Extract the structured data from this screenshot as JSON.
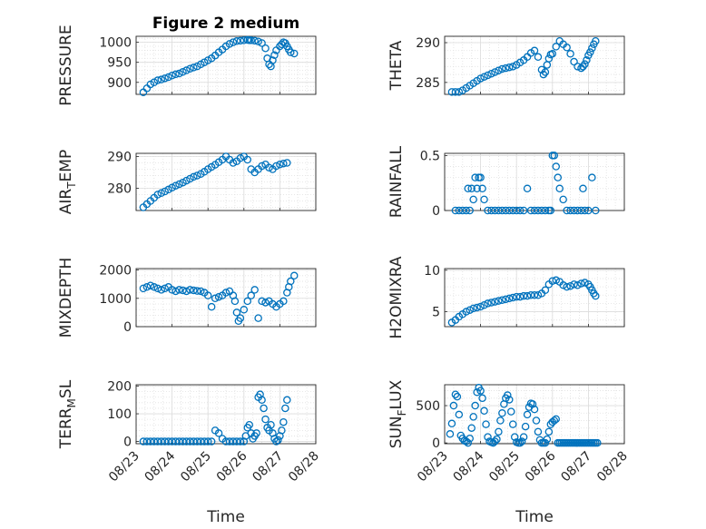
{
  "figure_title": "Figure 2 medium",
  "chart_data": [
    {
      "type": "scatter",
      "ylabel": "PRESSURE",
      "title": "Figure 2 medium",
      "xlim": [
        0,
        5
      ],
      "ylim": [
        870,
        1015
      ],
      "yticks": [
        900,
        950,
        1000
      ],
      "xticks": [
        0,
        1,
        2,
        3,
        4,
        5
      ],
      "xticklabels": [
        "08/23",
        "08/24",
        "08/25",
        "08/26",
        "08/27",
        "08/28"
      ],
      "show_xticklabels": false,
      "xlabel": "",
      "x": [
        0.2,
        0.3,
        0.4,
        0.5,
        0.6,
        0.7,
        0.8,
        0.9,
        1.0,
        1.1,
        1.2,
        1.3,
        1.4,
        1.5,
        1.6,
        1.7,
        1.8,
        1.9,
        2.0,
        2.1,
        2.2,
        2.3,
        2.4,
        2.5,
        2.6,
        2.7,
        2.8,
        2.9,
        3.0,
        3.1,
        3.15,
        3.2,
        3.3,
        3.4,
        3.5,
        3.6,
        3.65,
        3.7,
        3.75,
        3.8,
        3.85,
        3.9,
        4.0,
        4.05,
        4.1,
        4.15,
        4.2,
        4.25,
        4.3,
        4.4
      ],
      "y": [
        875,
        885,
        895,
        900,
        905,
        907,
        910,
        913,
        917,
        920,
        922,
        926,
        930,
        934,
        937,
        940,
        945,
        950,
        955,
        960,
        967,
        975,
        982,
        990,
        996,
        1000,
        1003,
        1004,
        1005,
        1006,
        1005,
        1005,
        1004,
        1002,
        998,
        985,
        960,
        945,
        940,
        955,
        968,
        980,
        990,
        995,
        1000,
        998,
        990,
        982,
        975,
        972
      ]
    },
    {
      "type": "scatter",
      "ylabel": "THETA",
      "xlim": [
        0,
        5
      ],
      "ylim": [
        283.5,
        290.8
      ],
      "yticks": [
        285,
        290
      ],
      "xticks": [
        0,
        1,
        2,
        3,
        4,
        5
      ],
      "xticklabels": [
        "08/23",
        "08/24",
        "08/25",
        "08/26",
        "08/27",
        "08/28"
      ],
      "show_xticklabels": false,
      "xlabel": "",
      "x": [
        0.2,
        0.3,
        0.4,
        0.5,
        0.6,
        0.7,
        0.8,
        0.9,
        1.0,
        1.1,
        1.2,
        1.3,
        1.4,
        1.5,
        1.6,
        1.7,
        1.8,
        1.9,
        2.0,
        2.1,
        2.2,
        2.3,
        2.4,
        2.5,
        2.6,
        2.7,
        2.75,
        2.8,
        2.85,
        2.9,
        2.95,
        3.0,
        3.1,
        3.2,
        3.3,
        3.4,
        3.5,
        3.6,
        3.7,
        3.8,
        3.85,
        3.9,
        3.95,
        4.0,
        4.05,
        4.1,
        4.15,
        4.2
      ],
      "y": [
        283.8,
        283.8,
        283.8,
        284.0,
        284.3,
        284.6,
        284.9,
        285.2,
        285.5,
        285.7,
        285.9,
        286.1,
        286.3,
        286.5,
        286.7,
        286.8,
        286.9,
        287.0,
        287.2,
        287.5,
        287.8,
        288.2,
        288.7,
        289.0,
        288.2,
        286.6,
        286.0,
        286.3,
        287.2,
        288.0,
        288.5,
        288.6,
        289.5,
        290.2,
        289.8,
        289.4,
        288.6,
        287.6,
        287.0,
        286.8,
        287.0,
        287.3,
        287.8,
        288.4,
        288.8,
        289.3,
        289.8,
        290.2
      ]
    },
    {
      "type": "scatter",
      "ylabel": "AIR_TEMP",
      "ylabel_main": "AIR",
      "ylabel_sub": "T",
      "ylabel_rest": "EMP",
      "xlim": [
        0,
        5
      ],
      "ylim": [
        273,
        291
      ],
      "yticks": [
        280,
        290
      ],
      "xticks": [
        0,
        1,
        2,
        3,
        4,
        5
      ],
      "xticklabels": [
        "08/23",
        "08/24",
        "08/25",
        "08/26",
        "08/27",
        "08/28"
      ],
      "show_xticklabels": false,
      "xlabel": "",
      "x": [
        0.2,
        0.3,
        0.4,
        0.5,
        0.6,
        0.7,
        0.8,
        0.9,
        1.0,
        1.1,
        1.2,
        1.3,
        1.4,
        1.5,
        1.6,
        1.7,
        1.8,
        1.9,
        2.0,
        2.1,
        2.2,
        2.3,
        2.4,
        2.5,
        2.6,
        2.7,
        2.8,
        2.9,
        3.0,
        3.1,
        3.2,
        3.3,
        3.4,
        3.5,
        3.6,
        3.7,
        3.8,
        3.9,
        4.0,
        4.1,
        4.2
      ],
      "y": [
        274,
        275,
        276,
        277,
        278,
        278.5,
        279,
        279.6,
        280.2,
        280.8,
        281.3,
        281.8,
        282.4,
        283,
        283.6,
        284,
        284.5,
        285.2,
        286,
        286.7,
        287.4,
        288.2,
        289,
        290,
        289,
        288,
        288.5,
        289.5,
        290,
        289,
        286,
        285,
        286,
        287,
        287.5,
        286.5,
        286,
        287,
        287.5,
        287.8,
        288
      ]
    },
    {
      "type": "scatter",
      "ylabel": "RAINFALL",
      "xlim": [
        0,
        5
      ],
      "ylim": [
        0,
        0.52
      ],
      "yticks": [
        0,
        0.5
      ],
      "xticks": [
        0,
        1,
        2,
        3,
        4,
        5
      ],
      "xticklabels": [
        "08/23",
        "08/24",
        "08/25",
        "08/26",
        "08/27",
        "08/28"
      ],
      "show_xticklabels": false,
      "xlabel": "",
      "x": [
        0.3,
        0.4,
        0.5,
        0.6,
        0.65,
        0.7,
        0.75,
        0.8,
        0.85,
        0.9,
        0.95,
        1.0,
        1.05,
        1.1,
        1.2,
        1.3,
        1.4,
        1.5,
        1.6,
        1.7,
        1.8,
        1.9,
        2.0,
        2.1,
        2.2,
        2.3,
        2.4,
        2.5,
        2.6,
        2.7,
        2.8,
        2.9,
        2.95,
        3.0,
        3.05,
        3.1,
        3.15,
        3.2,
        3.3,
        3.4,
        3.5,
        3.6,
        3.7,
        3.8,
        3.85,
        3.9,
        4.0,
        4.1,
        4.2
      ],
      "y": [
        0,
        0,
        0,
        0,
        0.2,
        0,
        0.2,
        0.1,
        0.3,
        0.2,
        0.3,
        0.3,
        0.2,
        0.1,
        0,
        0,
        0,
        0,
        0,
        0,
        0,
        0,
        0,
        0,
        0,
        0.2,
        0,
        0,
        0,
        0,
        0,
        0,
        0,
        0.5,
        0.5,
        0.4,
        0.3,
        0.2,
        0.1,
        0,
        0,
        0,
        0,
        0,
        0.2,
        0,
        0,
        0.3,
        0
      ]
    },
    {
      "type": "scatter",
      "ylabel": "MIXDEPTH",
      "xlim": [
        0,
        5
      ],
      "ylim": [
        0,
        2050
      ],
      "yticks": [
        0,
        1000,
        2000
      ],
      "xticks": [
        0,
        1,
        2,
        3,
        4,
        5
      ],
      "xticklabels": [
        "08/23",
        "08/24",
        "08/25",
        "08/26",
        "08/27",
        "08/28"
      ],
      "show_xticklabels": false,
      "xlabel": "",
      "x": [
        0.2,
        0.3,
        0.4,
        0.5,
        0.6,
        0.7,
        0.8,
        0.9,
        1.0,
        1.1,
        1.2,
        1.3,
        1.4,
        1.5,
        1.6,
        1.7,
        1.8,
        1.9,
        2.0,
        2.1,
        2.2,
        2.3,
        2.4,
        2.5,
        2.6,
        2.7,
        2.75,
        2.8,
        2.85,
        2.9,
        3.0,
        3.1,
        3.2,
        3.3,
        3.4,
        3.5,
        3.6,
        3.7,
        3.8,
        3.9,
        4.0,
        4.1,
        4.2,
        4.25,
        4.3,
        4.4
      ],
      "y": [
        1350,
        1400,
        1450,
        1400,
        1350,
        1300,
        1350,
        1400,
        1300,
        1250,
        1300,
        1280,
        1250,
        1300,
        1280,
        1260,
        1250,
        1200,
        1100,
        700,
        1000,
        1050,
        1100,
        1200,
        1250,
        1100,
        900,
        500,
        200,
        300,
        600,
        900,
        1100,
        1300,
        300,
        900,
        850,
        900,
        800,
        700,
        800,
        900,
        1200,
        1400,
        1600,
        1800
      ]
    },
    {
      "type": "scatter",
      "ylabel": "H2OMIXRA",
      "xlim": [
        0,
        5
      ],
      "ylim": [
        3.2,
        10.2
      ],
      "yticks": [
        5,
        10
      ],
      "xticks": [
        0,
        1,
        2,
        3,
        4,
        5
      ],
      "xticklabels": [
        "08/23",
        "08/24",
        "08/25",
        "08/26",
        "08/27",
        "08/28"
      ],
      "show_xticklabels": false,
      "xlabel": "",
      "x": [
        0.2,
        0.3,
        0.4,
        0.5,
        0.6,
        0.7,
        0.8,
        0.9,
        1.0,
        1.1,
        1.2,
        1.3,
        1.4,
        1.5,
        1.6,
        1.7,
        1.8,
        1.9,
        2.0,
        2.1,
        2.2,
        2.3,
        2.4,
        2.5,
        2.6,
        2.7,
        2.8,
        2.9,
        3.0,
        3.1,
        3.2,
        3.3,
        3.4,
        3.5,
        3.6,
        3.7,
        3.8,
        3.9,
        4.0,
        4.05,
        4.1,
        4.15,
        4.2
      ],
      "y": [
        3.7,
        4.0,
        4.4,
        4.7,
        5.0,
        5.2,
        5.4,
        5.5,
        5.6,
        5.8,
        6.0,
        6.1,
        6.2,
        6.3,
        6.4,
        6.5,
        6.6,
        6.7,
        6.8,
        6.8,
        6.9,
        6.9,
        7.0,
        7.0,
        7.0,
        7.2,
        7.6,
        8.3,
        8.7,
        8.8,
        8.6,
        8.2,
        8.0,
        8.1,
        8.3,
        8.2,
        8.4,
        8.5,
        8.3,
        8.0,
        7.6,
        7.2,
        6.9
      ]
    },
    {
      "type": "scatter",
      "ylabel": "TERR_MSL",
      "ylabel_main": "TERR",
      "ylabel_sub": "M",
      "ylabel_rest": "SL",
      "xlim": [
        0,
        5
      ],
      "ylim": [
        -8,
        205
      ],
      "yticks": [
        0,
        100,
        200
      ],
      "xticks": [
        0,
        1,
        2,
        3,
        4,
        5
      ],
      "xticklabels": [
        "08/23",
        "08/24",
        "08/25",
        "08/26",
        "08/27",
        "08/28"
      ],
      "show_xticklabels": true,
      "xlabel": "Time",
      "x": [
        0.2,
        0.3,
        0.4,
        0.5,
        0.6,
        0.7,
        0.8,
        0.9,
        1.0,
        1.1,
        1.2,
        1.3,
        1.4,
        1.5,
        1.6,
        1.7,
        1.8,
        1.9,
        2.0,
        2.1,
        2.2,
        2.3,
        2.4,
        2.5,
        2.6,
        2.7,
        2.8,
        2.9,
        3.0,
        3.05,
        3.1,
        3.15,
        3.2,
        3.25,
        3.3,
        3.35,
        3.4,
        3.45,
        3.5,
        3.55,
        3.6,
        3.65,
        3.7,
        3.75,
        3.8,
        3.85,
        3.9,
        3.95,
        4.0,
        4.05,
        4.1,
        4.15,
        4.2
      ],
      "y": [
        0,
        0,
        0,
        0,
        0,
        0,
        0,
        0,
        0,
        0,
        0,
        0,
        0,
        0,
        0,
        0,
        0,
        0,
        0,
        0,
        40,
        30,
        10,
        0,
        0,
        0,
        0,
        0,
        0,
        20,
        50,
        60,
        30,
        10,
        20,
        30,
        160,
        170,
        150,
        120,
        80,
        50,
        40,
        60,
        30,
        10,
        0,
        5,
        20,
        40,
        70,
        120,
        150
      ]
    },
    {
      "type": "scatter",
      "ylabel": "SUN_FLUX",
      "ylabel_main": "SUN",
      "ylabel_sub": "F",
      "ylabel_rest": "LUX",
      "xlim": [
        0,
        5
      ],
      "ylim": [
        -10,
        780
      ],
      "yticks": [
        0,
        500
      ],
      "xticks": [
        0,
        1,
        2,
        3,
        4,
        5
      ],
      "xticklabels": [
        "08/23",
        "08/24",
        "08/25",
        "08/26",
        "08/27",
        "08/28"
      ],
      "show_xticklabels": true,
      "xlabel": "Time",
      "x": [
        0.15,
        0.2,
        0.25,
        0.3,
        0.35,
        0.4,
        0.45,
        0.5,
        0.55,
        0.6,
        0.65,
        0.7,
        0.75,
        0.8,
        0.85,
        0.9,
        0.95,
        1.0,
        1.05,
        1.1,
        1.15,
        1.2,
        1.25,
        1.3,
        1.35,
        1.4,
        1.45,
        1.5,
        1.55,
        1.6,
        1.65,
        1.7,
        1.75,
        1.8,
        1.85,
        1.9,
        1.95,
        2.0,
        2.05,
        2.1,
        2.15,
        2.2,
        2.25,
        2.3,
        2.35,
        2.4,
        2.45,
        2.5,
        2.55,
        2.6,
        2.65,
        2.7,
        2.75,
        2.8,
        2.85,
        2.9,
        2.95,
        3.0,
        3.05,
        3.1,
        3.15,
        3.2,
        3.25,
        3.3,
        3.35,
        3.4,
        3.45,
        3.5,
        3.55,
        3.6,
        3.65,
        3.7,
        3.75,
        3.8,
        3.85,
        3.9,
        3.95,
        4.0,
        4.05,
        4.1,
        4.15,
        4.2,
        4.25
      ],
      "y": [
        120,
        260,
        500,
        650,
        620,
        380,
        100,
        60,
        30,
        20,
        0,
        60,
        200,
        350,
        500,
        680,
        740,
        700,
        600,
        430,
        250,
        80,
        20,
        10,
        0,
        20,
        50,
        150,
        300,
        400,
        520,
        600,
        640,
        580,
        420,
        250,
        80,
        10,
        0,
        0,
        20,
        80,
        220,
        380,
        480,
        530,
        520,
        450,
        300,
        150,
        40,
        0,
        0,
        0,
        50,
        150,
        250,
        280,
        300,
        320,
        0,
        0,
        0,
        0,
        0,
        0,
        0,
        0,
        0,
        0,
        0,
        0,
        0,
        0,
        0,
        0,
        0,
        0,
        0,
        0,
        0,
        0,
        0
      ]
    }
  ]
}
